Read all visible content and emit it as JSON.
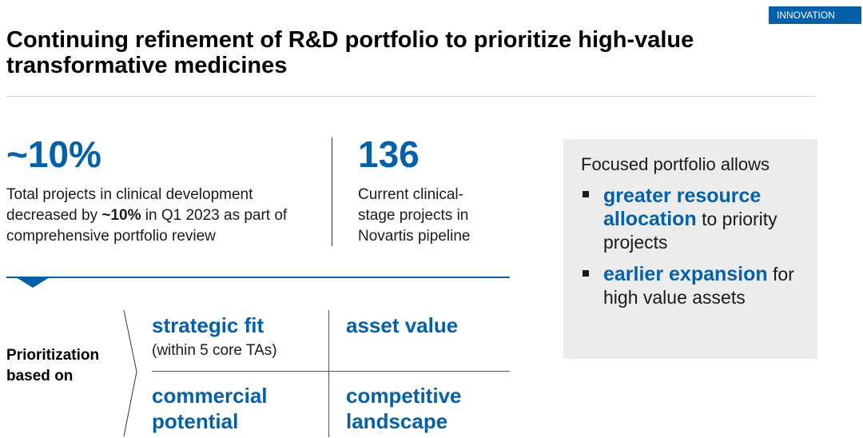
{
  "tag": "INNOVATION",
  "title": "Continuing refinement of R&D portfolio to prioritize high-value transformative medicines",
  "kpis": [
    {
      "value": "~10%",
      "desc_a": "Total projects in clinical development decreased by ",
      "desc_bold": "~10%",
      "desc_b": " in Q1 2023 as part of comprehensive portfolio review"
    },
    {
      "value": "136",
      "desc": "Current clinical-stage projects in Novartis pipeline"
    }
  ],
  "prioritization": {
    "label": "Prioritization based on",
    "cells": {
      "strategic_fit": "strategic fit",
      "strategic_fit_sub": "(within 5 core TAs)",
      "asset_value": "asset value",
      "commercial_potential": "commercial potential",
      "competitive_landscape": "competitive landscape"
    }
  },
  "box": {
    "heading": "Focused portfolio allows",
    "bullets": [
      {
        "emphasis": "greater resource allocation",
        "rest": " to priority projects"
      },
      {
        "emphasis": "earlier expansion",
        "rest": " for high value assets"
      }
    ]
  },
  "colors": {
    "accent": "#0460a9",
    "box_bg": "#ececec"
  }
}
